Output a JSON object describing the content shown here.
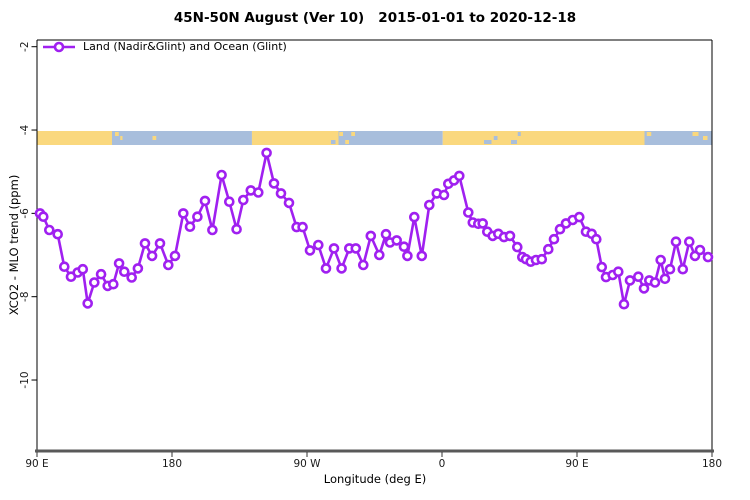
{
  "chart_data": {
    "type": "line",
    "title": "45N-50N August (Ver 10)   2015-01-01 to 2020-12-18",
    "xlabel": "Longitude (deg E)",
    "ylabel": "XCO2 - MLO trend (ppm)",
    "legend": [
      {
        "label": "Land (Nadir&Glint) and Ocean (Glint)",
        "color": "#A020F0",
        "marker": "open-circle"
      }
    ],
    "x_axis": {
      "label": "Longitude (deg E)",
      "span_deg": 450,
      "ticks": [
        {
          "label": "90 E",
          "deg": 0
        },
        {
          "label": "180",
          "deg": 90
        },
        {
          "label": "90 W",
          "deg": 180
        },
        {
          "label": "0",
          "deg": 270
        },
        {
          "label": "90 E",
          "deg": 360
        },
        {
          "label": "180",
          "deg": 450
        }
      ]
    },
    "y_axis": {
      "label": "XCO2 - MLO trend (ppm)",
      "range_ppm": [
        -11.7,
        -1.8
      ],
      "ticks": [
        {
          "label": "-2",
          "value": -2
        },
        {
          "label": "-4",
          "value": -4
        },
        {
          "label": "-6",
          "value": -6
        },
        {
          "label": "-8",
          "value": -8
        },
        {
          "label": "-10",
          "value": -10
        }
      ]
    },
    "map_band": {
      "description": "45N-50N latitude strip world map, land vs ocean, along longitude axis",
      "colors": {
        "land": "#FAD87E",
        "ocean": "#A8BEDC"
      },
      "segments": [
        {
          "s": 0,
          "e": 50,
          "type": "land"
        },
        {
          "s": 50,
          "e": 143.3,
          "type": "ocean"
        },
        {
          "s": 143.3,
          "e": 201,
          "type": "land"
        },
        {
          "s": 201,
          "e": 214,
          "type": "ocean"
        },
        {
          "s": 214,
          "e": 270.5,
          "type": "ocean"
        },
        {
          "s": 270.5,
          "e": 405,
          "type": "land"
        },
        {
          "s": 405,
          "e": 450,
          "type": "ocean"
        }
      ],
      "speckles": [
        {
          "s": 52,
          "e": 54.5,
          "type": "land",
          "pos": "top"
        },
        {
          "s": 55.5,
          "e": 57,
          "type": "land",
          "pos": "mid"
        },
        {
          "s": 77,
          "e": 79.5,
          "type": "land",
          "pos": "mid"
        },
        {
          "s": 196,
          "e": 199,
          "type": "ocean",
          "pos": "bottom"
        },
        {
          "s": 201.5,
          "e": 204,
          "type": "land",
          "pos": "top"
        },
        {
          "s": 205.5,
          "e": 208,
          "type": "land",
          "pos": "bottom"
        },
        {
          "s": 209.5,
          "e": 212,
          "type": "land",
          "pos": "top"
        },
        {
          "s": 298,
          "e": 303,
          "type": "ocean",
          "pos": "bottom"
        },
        {
          "s": 304.5,
          "e": 307,
          "type": "ocean",
          "pos": "mid"
        },
        {
          "s": 316,
          "e": 320,
          "type": "ocean",
          "pos": "bottom"
        },
        {
          "s": 320.5,
          "e": 322.5,
          "type": "ocean",
          "pos": "top"
        },
        {
          "s": 406.5,
          "e": 409.5,
          "type": "land",
          "pos": "top"
        },
        {
          "s": 437,
          "e": 441,
          "type": "land",
          "pos": "top"
        },
        {
          "s": 444,
          "e": 447,
          "type": "land",
          "pos": "mid"
        }
      ]
    },
    "series": [
      {
        "name": "Land (Nadir&Glint) and Ocean (Glint)",
        "color": "#A020F0",
        "marker": "open-circle",
        "points": [
          [
            2,
            -6.0
          ],
          [
            4.2,
            -6.08
          ],
          [
            8.2,
            -6.4
          ],
          [
            13.8,
            -6.5
          ],
          [
            18.2,
            -7.28
          ],
          [
            22.7,
            -7.52
          ],
          [
            27.1,
            -7.42
          ],
          [
            30.5,
            -7.34
          ],
          [
            33.8,
            -8.16
          ],
          [
            38.2,
            -7.66
          ],
          [
            42.7,
            -7.46
          ],
          [
            47.1,
            -7.74
          ],
          [
            50.9,
            -7.7
          ],
          [
            54.7,
            -7.2
          ],
          [
            58.2,
            -7.4
          ],
          [
            63.1,
            -7.54
          ],
          [
            67.3,
            -7.32
          ],
          [
            72,
            -6.72
          ],
          [
            76.7,
            -7.02
          ],
          [
            82,
            -6.72
          ],
          [
            87.5,
            -7.24
          ],
          [
            92,
            -7.02
          ],
          [
            97.5,
            -6.0
          ],
          [
            102,
            -6.32
          ],
          [
            106.9,
            -6.08
          ],
          [
            112,
            -5.7
          ],
          [
            116.9,
            -6.4
          ],
          [
            123.1,
            -5.08
          ],
          [
            128.2,
            -5.72
          ],
          [
            133.1,
            -6.38
          ],
          [
            137.5,
            -5.68
          ],
          [
            142.5,
            -5.45
          ],
          [
            147.5,
            -5.5
          ],
          [
            153.1,
            -4.55
          ],
          [
            158,
            -5.28
          ],
          [
            162.7,
            -5.52
          ],
          [
            168,
            -5.75
          ],
          [
            173.1,
            -6.33
          ],
          [
            177.1,
            -6.33
          ],
          [
            182,
            -6.89
          ],
          [
            187.5,
            -6.76
          ],
          [
            192.7,
            -7.32
          ],
          [
            198,
            -6.84
          ],
          [
            203.1,
            -7.32
          ],
          [
            208.2,
            -6.84
          ],
          [
            212.5,
            -6.84
          ],
          [
            217.5,
            -7.24
          ],
          [
            222.5,
            -6.54
          ],
          [
            228.2,
            -7.0
          ],
          [
            232.7,
            -6.5
          ],
          [
            235.3,
            -6.7
          ],
          [
            239.8,
            -6.65
          ],
          [
            244.7,
            -6.8
          ],
          [
            246.9,
            -7.02
          ],
          [
            251.5,
            -6.09
          ],
          [
            256.5,
            -7.02
          ],
          [
            261.5,
            -5.8
          ],
          [
            266.5,
            -5.52
          ],
          [
            271.3,
            -5.56
          ],
          [
            274.2,
            -5.29
          ],
          [
            278,
            -5.21
          ],
          [
            281.5,
            -5.1
          ],
          [
            287.5,
            -5.98
          ],
          [
            290.5,
            -6.22
          ],
          [
            294.2,
            -6.25
          ],
          [
            297.1,
            -6.24
          ],
          [
            300.2,
            -6.44
          ],
          [
            303.8,
            -6.54
          ],
          [
            307.5,
            -6.49
          ],
          [
            311.3,
            -6.57
          ],
          [
            315.3,
            -6.54
          ],
          [
            320.2,
            -6.81
          ],
          [
            323.5,
            -7.05
          ],
          [
            326,
            -7.1
          ],
          [
            329.1,
            -7.16
          ],
          [
            332.7,
            -7.12
          ],
          [
            336.5,
            -7.1
          ],
          [
            340.9,
            -6.86
          ],
          [
            344.7,
            -6.62
          ],
          [
            348.7,
            -6.38
          ],
          [
            352.7,
            -6.24
          ],
          [
            357.1,
            -6.16
          ],
          [
            361.5,
            -6.09
          ],
          [
            366,
            -6.44
          ],
          [
            369.8,
            -6.49
          ],
          [
            372.9,
            -6.62
          ],
          [
            376.5,
            -7.29
          ],
          [
            379.3,
            -7.53
          ],
          [
            383.8,
            -7.48
          ],
          [
            387.5,
            -7.4
          ],
          [
            391.3,
            -8.18
          ],
          [
            395.3,
            -7.61
          ],
          [
            400.9,
            -7.52
          ],
          [
            404.7,
            -7.8
          ],
          [
            408.2,
            -7.61
          ],
          [
            412,
            -7.66
          ],
          [
            415.8,
            -7.12
          ],
          [
            418.7,
            -7.57
          ],
          [
            422,
            -7.34
          ],
          [
            426,
            -6.68
          ],
          [
            430.5,
            -7.34
          ],
          [
            434.9,
            -6.68
          ],
          [
            438.7,
            -7.02
          ],
          [
            442,
            -6.88
          ],
          [
            447.3,
            -7.05
          ]
        ]
      }
    ]
  }
}
